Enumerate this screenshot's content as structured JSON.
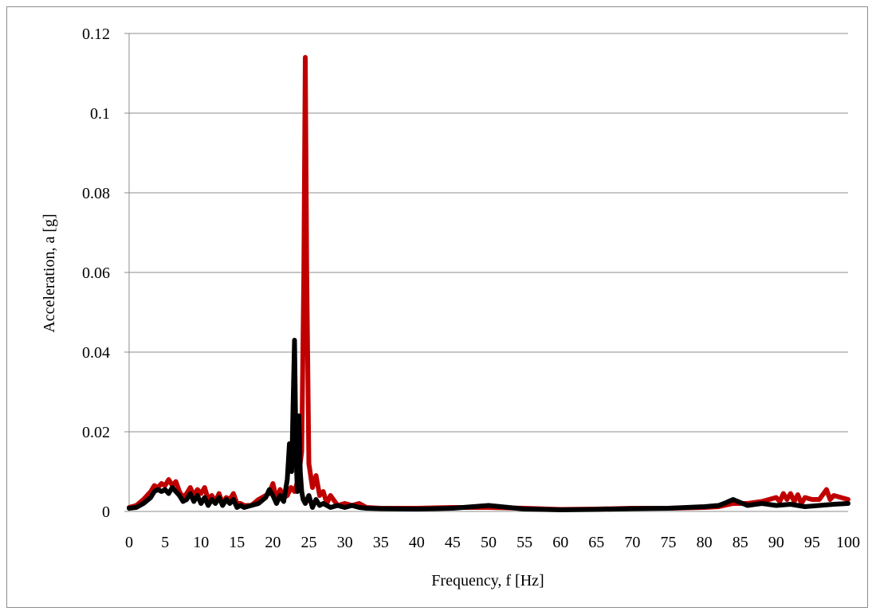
{
  "chart_data": {
    "type": "line",
    "title": "",
    "xlabel": "Frequency, f [Hz]",
    "ylabel": "Acceleration, a [g]",
    "xlim": [
      0,
      100
    ],
    "ylim": [
      0,
      0.12
    ],
    "x_ticks": [
      "0",
      "5",
      "10",
      "15",
      "20",
      "25",
      "30",
      "35",
      "40",
      "45",
      "50",
      "55",
      "60",
      "65",
      "70",
      "75",
      "80",
      "85",
      "90",
      "95",
      "100"
    ],
    "y_ticks": [
      "0",
      "0.02",
      "0.04",
      "0.06",
      "0.08",
      "0.1",
      "0.12"
    ],
    "grid": "horizontal major gridlines",
    "legend": "none",
    "series": [
      {
        "color": "#c00000",
        "x": [
          0,
          1,
          2,
          3,
          3.5,
          4,
          4.5,
          5,
          5.5,
          6,
          6.5,
          7,
          7.5,
          8,
          8.5,
          9,
          9.5,
          10,
          10.5,
          11,
          11.5,
          12,
          12.5,
          13,
          13.5,
          14,
          14.5,
          15,
          15.5,
          16,
          17,
          18,
          19,
          19.5,
          20,
          20.5,
          21,
          21.5,
          22,
          22.5,
          23,
          23.5,
          24,
          24.3,
          24.5,
          24.7,
          25,
          25.5,
          26,
          26.5,
          27,
          27.5,
          28,
          29,
          30,
          31,
          32,
          33,
          35,
          40,
          45,
          50,
          55,
          60,
          65,
          70,
          75,
          80,
          82,
          84,
          86,
          88,
          89,
          90,
          90.5,
          91,
          91.5,
          92,
          92.5,
          93,
          93.5,
          94,
          95,
          96,
          97,
          97.5,
          98,
          99,
          100
        ],
        "y": [
          0.001,
          0.0015,
          0.003,
          0.005,
          0.0065,
          0.006,
          0.007,
          0.0065,
          0.008,
          0.0065,
          0.0075,
          0.005,
          0.0035,
          0.0045,
          0.006,
          0.004,
          0.0055,
          0.0045,
          0.006,
          0.003,
          0.004,
          0.0025,
          0.0045,
          0.002,
          0.0035,
          0.003,
          0.0045,
          0.002,
          0.002,
          0.0015,
          0.0015,
          0.003,
          0.004,
          0.0045,
          0.007,
          0.003,
          0.0055,
          0.0035,
          0.004,
          0.006,
          0.005,
          0.008,
          0.015,
          0.06,
          0.114,
          0.06,
          0.012,
          0.006,
          0.009,
          0.004,
          0.005,
          0.002,
          0.004,
          0.0015,
          0.002,
          0.0015,
          0.002,
          0.001,
          0.0008,
          0.0008,
          0.001,
          0.001,
          0.0008,
          0.0005,
          0.0006,
          0.0008,
          0.0008,
          0.001,
          0.0012,
          0.002,
          0.002,
          0.0025,
          0.003,
          0.0035,
          0.0025,
          0.0045,
          0.003,
          0.0045,
          0.0025,
          0.0042,
          0.002,
          0.0035,
          0.003,
          0.003,
          0.0055,
          0.003,
          0.004,
          0.0035,
          0.003
        ]
      },
      {
        "color": "#000000",
        "x": [
          0,
          1,
          2,
          3,
          3.5,
          4,
          4.5,
          5,
          5.5,
          6,
          6.5,
          7,
          7.5,
          8,
          8.5,
          9,
          9.5,
          10,
          10.5,
          11,
          11.5,
          12,
          12.5,
          13,
          13.5,
          14,
          14.5,
          15,
          15.5,
          16,
          17,
          18,
          19,
          19.5,
          20,
          20.5,
          21,
          21.5,
          22,
          22.3,
          22.6,
          23,
          23.2,
          23.4,
          23.6,
          23.8,
          24,
          24.2,
          24.5,
          25,
          25.5,
          26,
          26.5,
          27,
          28,
          29,
          30,
          31,
          32,
          33,
          35,
          40,
          45,
          50,
          55,
          60,
          65,
          70,
          75,
          80,
          82,
          83,
          84,
          86,
          88,
          90,
          92,
          94,
          96,
          98,
          100
        ],
        "y": [
          0.0008,
          0.001,
          0.002,
          0.0035,
          0.005,
          0.0055,
          0.005,
          0.0055,
          0.0045,
          0.006,
          0.005,
          0.004,
          0.0025,
          0.003,
          0.0045,
          0.0025,
          0.004,
          0.002,
          0.0035,
          0.0015,
          0.003,
          0.002,
          0.0035,
          0.0015,
          0.003,
          0.002,
          0.003,
          0.001,
          0.0015,
          0.001,
          0.0015,
          0.002,
          0.0035,
          0.0055,
          0.004,
          0.002,
          0.004,
          0.0025,
          0.008,
          0.017,
          0.01,
          0.043,
          0.015,
          0.005,
          0.024,
          0.01,
          0.005,
          0.003,
          0.002,
          0.004,
          0.001,
          0.003,
          0.0015,
          0.002,
          0.001,
          0.0015,
          0.001,
          0.0015,
          0.001,
          0.0008,
          0.0007,
          0.0006,
          0.0008,
          0.0015,
          0.0006,
          0.0004,
          0.0005,
          0.0007,
          0.0008,
          0.0012,
          0.0015,
          0.0022,
          0.003,
          0.0015,
          0.002,
          0.0015,
          0.0018,
          0.0012,
          0.0015,
          0.0018,
          0.002
        ]
      }
    ]
  }
}
